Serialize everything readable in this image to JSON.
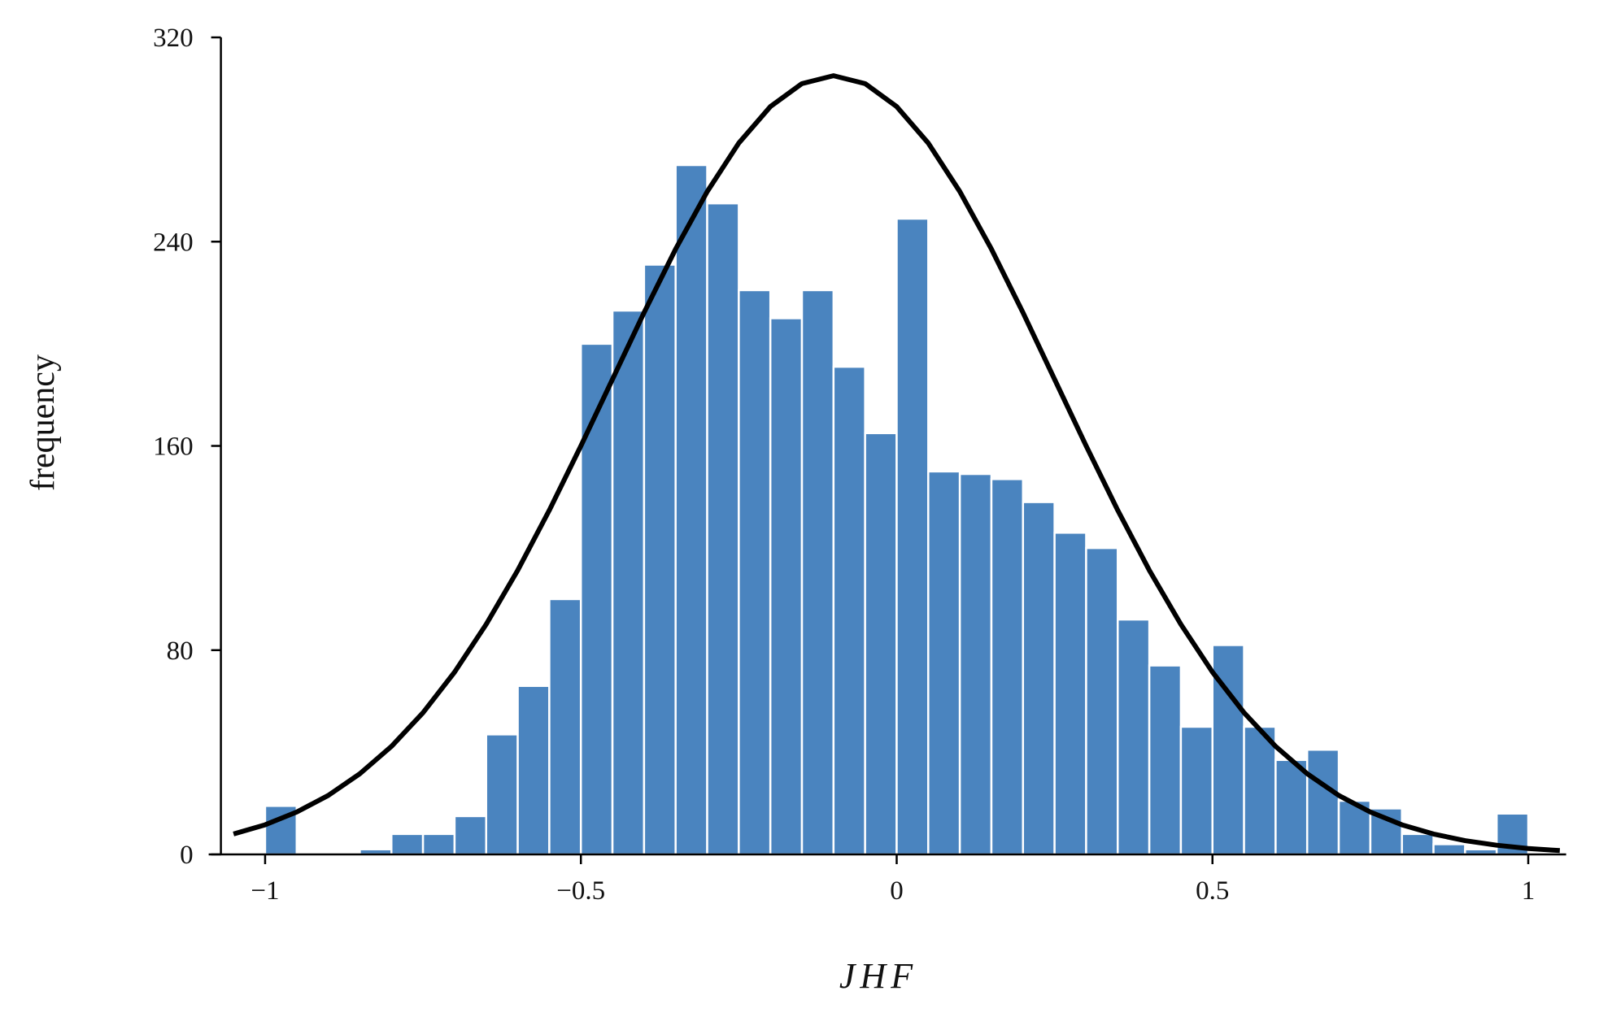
{
  "chart_data": {
    "type": "histogram",
    "xlabel": "JHF",
    "ylabel": "frequency",
    "bins": [
      -1,
      -0.95,
      -0.9,
      -0.85,
      -0.8,
      -0.75,
      -0.7,
      -0.65,
      -0.6,
      -0.55,
      -0.5,
      -0.45,
      -0.4,
      -0.35,
      -0.3,
      -0.25,
      -0.2,
      -0.15,
      -0.1,
      -0.05,
      0,
      0.05,
      0.1,
      0.15,
      0.2,
      0.25,
      0.3,
      0.35,
      0.4,
      0.45,
      0.5,
      0.55,
      0.6,
      0.65,
      0.7,
      0.75,
      0.8,
      0.85,
      0.9,
      0.95,
      1
    ],
    "values": [
      19,
      0,
      0,
      2,
      8,
      8,
      15,
      47,
      66,
      100,
      200,
      213,
      231,
      270,
      255,
      221,
      210,
      221,
      191,
      165,
      249,
      150,
      149,
      147,
      138,
      126,
      120,
      92,
      74,
      50,
      82,
      50,
      37,
      41,
      21,
      18,
      8,
      4,
      2,
      16
    ],
    "color": "#4a84bf",
    "curve": {
      "color": "#000000",
      "x": [
        -1.05,
        -1,
        -0.95,
        -0.9,
        -0.85,
        -0.8,
        -0.75,
        -0.7,
        -0.65,
        -0.6,
        -0.55,
        -0.5,
        -0.45,
        -0.4,
        -0.35,
        -0.3,
        -0.25,
        -0.2,
        -0.15,
        -0.1,
        -0.05,
        0,
        0.05,
        0.1,
        0.15,
        0.2,
        0.25,
        0.3,
        0.35,
        0.4,
        0.45,
        0.5,
        0.55,
        0.6,
        0.65,
        0.7,
        0.75,
        0.8,
        0.85,
        0.9,
        0.95,
        1,
        1.05
      ],
      "values": [
        8,
        11.6,
        16.6,
        23.1,
        31.6,
        42.3,
        55.5,
        71.4,
        90.1,
        111.3,
        134.8,
        160,
        186.1,
        212.2,
        237.1,
        259.6,
        278.6,
        292.9,
        301.9,
        305,
        301.9,
        292.9,
        278.6,
        259.6,
        237.1,
        212.2,
        186.1,
        160,
        134.8,
        111.3,
        90.1,
        71.4,
        55.5,
        42.3,
        31.6,
        23.1,
        16.6,
        11.6,
        8,
        5.4,
        3.6,
        2.3,
        1.5
      ]
    },
    "xlim": [
      -1.07,
      1.06
    ],
    "ylim": [
      0,
      320
    ],
    "xticks": [
      {
        "value": -1,
        "label": "−1"
      },
      {
        "value": -0.5,
        "label": "−0.5"
      },
      0,
      0.5,
      1
    ],
    "yticks": [
      0,
      80,
      160,
      240,
      320
    ]
  }
}
